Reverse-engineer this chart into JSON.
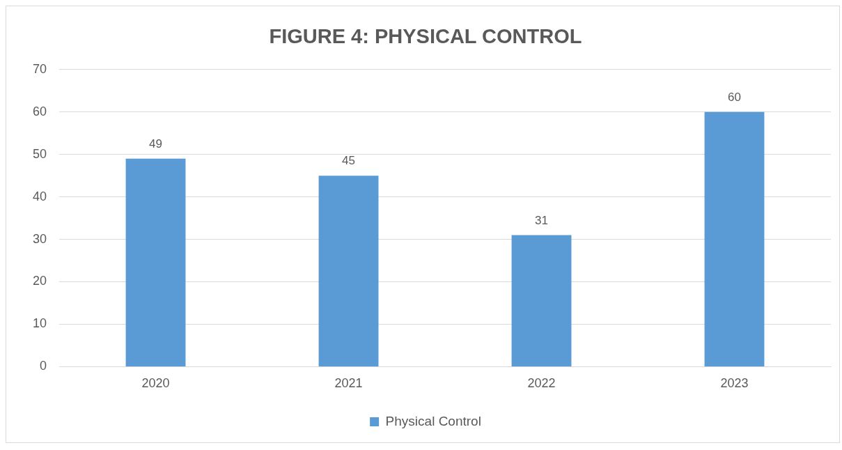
{
  "chart_data": {
    "type": "bar",
    "title": "FIGURE 4: PHYSICAL CONTROL",
    "categories": [
      "2020",
      "2021",
      "2022",
      "2023"
    ],
    "series": [
      {
        "name": "Physical Control",
        "color": "#5b9bd5",
        "values": [
          49,
          45,
          31,
          60
        ]
      }
    ],
    "ylim": [
      0,
      70
    ],
    "yticks": [
      0,
      10,
      20,
      30,
      40,
      50,
      60,
      70
    ],
    "grid": "y",
    "legend": "bottom",
    "data_labels": true
  }
}
